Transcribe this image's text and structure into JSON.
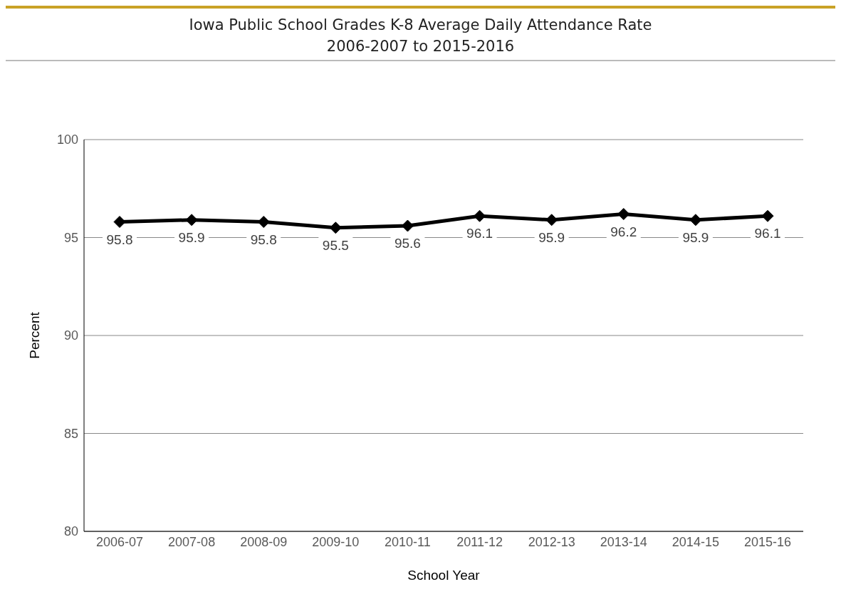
{
  "chart_data": {
    "type": "line",
    "title": "Iowa Public School Grades K-8 Average Daily Attendance Rate\n2006-2007 to 2015-2016",
    "xlabel": "School Year",
    "ylabel": "Percent",
    "categories": [
      "2006-07",
      "2007-08",
      "2008-09",
      "2009-10",
      "2010-11",
      "2011-12",
      "2012-13",
      "2013-14",
      "2014-15",
      "2015-16"
    ],
    "series": [
      {
        "color": "#000000",
        "values": [
          95.8,
          95.9,
          95.8,
          95.5,
          95.6,
          96.1,
          95.9,
          96.2,
          95.9,
          96.1
        ]
      }
    ],
    "ylim": [
      80,
      100
    ],
    "yticks": [
      80,
      85,
      90,
      95,
      100
    ],
    "grid": "y",
    "marker": "diamond",
    "line_style": "solid",
    "data_labels": true
  }
}
